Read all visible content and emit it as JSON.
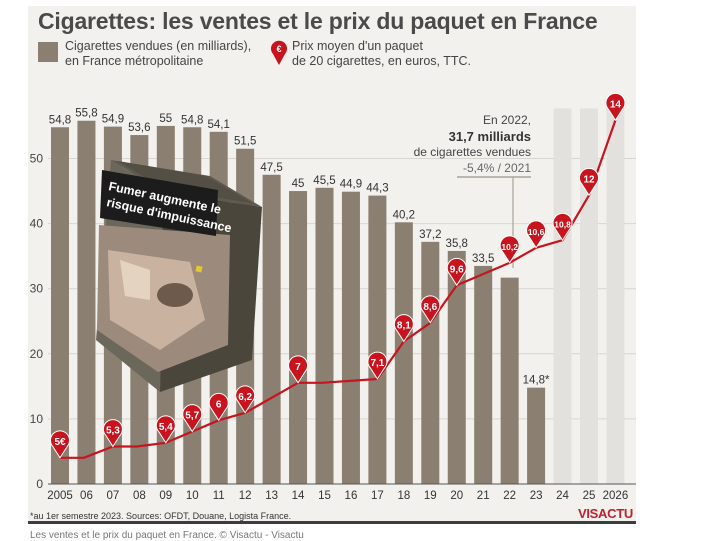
{
  "title": "Cigarettes: les ventes et le prix du paquet en France",
  "legend": {
    "bars_line1": "Cigarettes vendues (en milliards),",
    "bars_line2": "en France métropolitaine",
    "price_icon": "€",
    "price_line1": "Prix moyen d'un paquet",
    "price_line2": "de 20 cigarettes, en euros, TTC."
  },
  "annotation": {
    "line1": "En 2022,",
    "line2": "31,7 milliards",
    "line3": "de cigarettes vendues",
    "line4": "-5,4% / 2021"
  },
  "pack": {
    "warning_line1": "Fumer augmente le",
    "warning_line2": "risque d'impuissance"
  },
  "footer": "*au 1er semestre 2023. Sources: OFDT, Douane, Logista France.",
  "brand": "VISACTU",
  "caption": "Les ventes et le prix du paquet en France. © Visactu - Visactu",
  "colors": {
    "bars": "#8a7f70",
    "future_bars": "#e2e1dd",
    "price_line": "#c8141e",
    "grid": "#d8d6d0"
  },
  "chart_data": {
    "type": "bar",
    "categories": [
      "2005",
      "06",
      "07",
      "08",
      "09",
      "10",
      "11",
      "12",
      "13",
      "14",
      "15",
      "16",
      "17",
      "18",
      "19",
      "20",
      "21",
      "22",
      "23",
      "24",
      "25",
      "2026"
    ],
    "ylim": [
      0,
      58
    ],
    "yticks": [
      "0",
      "10",
      "20",
      "30",
      "40",
      "50"
    ],
    "grid": true,
    "series": [
      {
        "name": "Cigarettes vendues (en milliards), en France métropolitaine",
        "type": "bar",
        "values": [
          54.8,
          55.8,
          54.9,
          53.6,
          55,
          54.8,
          54.1,
          51.5,
          47.5,
          45,
          45.5,
          44.9,
          44.3,
          40.2,
          37.2,
          35.8,
          33.5,
          31.7,
          14.8,
          null,
          null,
          null
        ],
        "labels": [
          "54,8",
          "55,8",
          "54,9",
          "53,6",
          "55",
          "54,8",
          "54,1",
          "51,5",
          "47,5",
          "45",
          "45,5",
          "44,9",
          "44,3",
          "40,2",
          "37,2",
          "35,8",
          "33,5",
          "",
          "14,8*",
          "",
          "",
          ""
        ]
      },
      {
        "name": "Prix moyen d'un paquet de 20 cigarettes, en euros, TTC.",
        "type": "line",
        "markers": [
          {
            "year": "2005",
            "price": 5,
            "label": "5€"
          },
          {
            "year": "07",
            "price": 5.3,
            "label": "5,3"
          },
          {
            "year": "09",
            "price": 5.4,
            "label": "5,4"
          },
          {
            "year": "10",
            "price": 5.7,
            "label": "5,7"
          },
          {
            "year": "11",
            "price": 6,
            "label": "6"
          },
          {
            "year": "12",
            "price": 6.2,
            "label": "6,2"
          },
          {
            "year": "14",
            "price": 7,
            "label": "7"
          },
          {
            "year": "17",
            "price": 7.1,
            "label": "7,1"
          },
          {
            "year": "18",
            "price": 8.1,
            "label": "8,1"
          },
          {
            "year": "19",
            "price": 8.6,
            "label": "8,6"
          },
          {
            "year": "20",
            "price": 9.6,
            "label": "9,6"
          },
          {
            "year": "22",
            "price": 10.2,
            "label": "10,2"
          },
          {
            "year": "23",
            "price": 10.6,
            "label": "10,6"
          },
          {
            "year": "24",
            "price": 10.8,
            "label": "10,8"
          },
          {
            "year": "25",
            "price": 12,
            "label": "12"
          },
          {
            "year": "2026",
            "price": 14,
            "label": "14"
          }
        ]
      }
    ]
  }
}
